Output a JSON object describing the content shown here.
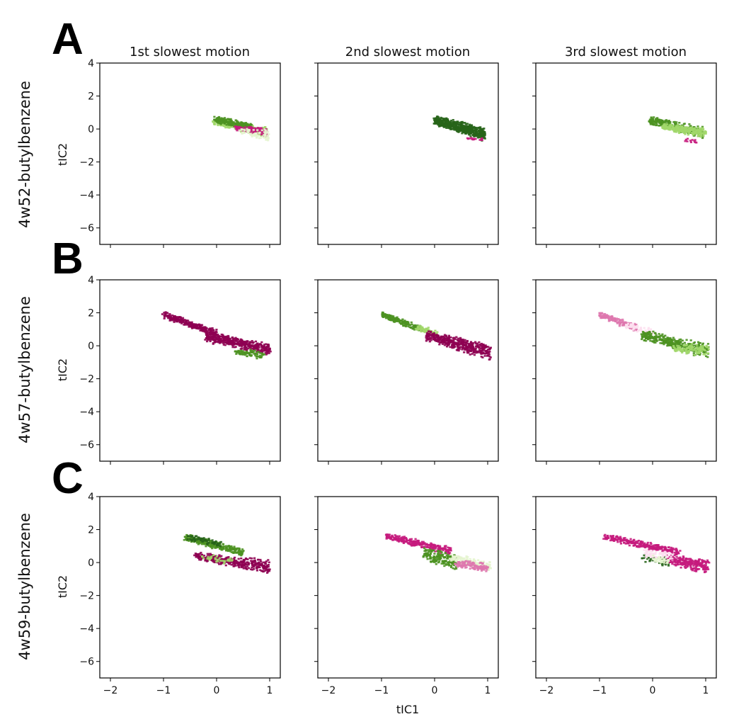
{
  "figure": {
    "column_titles": [
      "1st slowest motion",
      "2nd slowest motion",
      "3rd slowest motion"
    ],
    "row_labels": [
      "4w52-butylbenzene",
      "4w57-butylbenzene",
      "4w59-butylbenzene"
    ],
    "panel_letters": [
      "A",
      "B",
      "C"
    ],
    "xlabel": "tIC1",
    "ylabel": "tIC2",
    "colors": {
      "dark_green": "#276419",
      "green": "#4d9221",
      "light_green": "#a1d76a",
      "pale_green": "#e6f5d0",
      "pale_pink": "#fde0ef",
      "pink": "#de77ae",
      "magenta": "#c51b7d",
      "dark_magenta": "#8e0152"
    }
  },
  "chart_data": {
    "type": "scatter",
    "layout": "3x3 grid of scatter panels sharing axes",
    "xlim": [
      -2.2,
      1.2
    ],
    "ylim": [
      -7,
      4
    ],
    "xticks": [
      -2,
      -1,
      0,
      1
    ],
    "yticks": [
      -6,
      -4,
      -2,
      0,
      2,
      4
    ],
    "x_tick_labels": [
      "−2",
      "−1",
      "0",
      "1"
    ],
    "y_tick_labels": [
      "−6",
      "−4",
      "−2",
      "0",
      "2",
      "4"
    ],
    "grid": false,
    "legend": "none",
    "panels": [
      {
        "row": 0,
        "col": 0,
        "clusters": [
          {
            "x": [
              -0.05,
              0.95
            ],
            "y_top": [
              0.7,
              0.15
            ],
            "y_bot": [
              0.25,
              -0.6
            ],
            "color": "light_green",
            "n": 300
          },
          {
            "x": [
              -0.05,
              0.65
            ],
            "y_top": [
              0.85,
              0.35
            ],
            "y_bot": [
              0.35,
              -0.05
            ],
            "color": "green",
            "n": 220
          },
          {
            "x": [
              0.35,
              0.95
            ],
            "y_top": [
              0.2,
              0.1
            ],
            "y_bot": [
              -0.1,
              -0.5
            ],
            "color": "magenta",
            "n": 110
          },
          {
            "x": [
              0.45,
              1.0
            ],
            "y_top": [
              0.05,
              0.0
            ],
            "y_bot": [
              -0.4,
              -0.9
            ],
            "color": "pale_green",
            "n": 70
          }
        ]
      },
      {
        "row": 0,
        "col": 1,
        "clusters": [
          {
            "x": [
              0.0,
              0.95
            ],
            "y_top": [
              0.85,
              0.15
            ],
            "y_bot": [
              0.2,
              -0.8
            ],
            "color": "dark_green",
            "n": 520
          },
          {
            "x": [
              0.6,
              0.9
            ],
            "y_top": [
              -0.45,
              -0.5
            ],
            "y_bot": [
              -0.65,
              -0.8
            ],
            "color": "magenta",
            "n": 15
          }
        ]
      },
      {
        "row": 0,
        "col": 2,
        "clusters": [
          {
            "x": [
              -0.05,
              0.95
            ],
            "y_top": [
              0.8,
              0.15
            ],
            "y_bot": [
              0.25,
              -0.6
            ],
            "color": "green",
            "n": 300
          },
          {
            "x": [
              0.2,
              1.0
            ],
            "y_top": [
              0.35,
              0.1
            ],
            "y_bot": [
              -0.1,
              -0.55
            ],
            "color": "light_green",
            "n": 220
          },
          {
            "x": [
              0.6,
              0.85
            ],
            "y_top": [
              -0.55,
              -0.65
            ],
            "y_bot": [
              -0.8,
              -0.95
            ],
            "color": "magenta",
            "n": 12
          }
        ]
      },
      {
        "row": 1,
        "col": 0,
        "clusters": [
          {
            "x": [
              -1.0,
              0.0
            ],
            "y_top": [
              2.1,
              1.0
            ],
            "y_bot": [
              1.65,
              0.5
            ],
            "color": "dark_magenta",
            "n": 260
          },
          {
            "x": [
              -0.2,
              1.0
            ],
            "y_top": [
              0.95,
              0.15
            ],
            "y_bot": [
              0.2,
              -0.6
            ],
            "color": "dark_magenta",
            "n": 420
          },
          {
            "x": [
              0.35,
              0.9
            ],
            "y_top": [
              -0.2,
              -0.15
            ],
            "y_bot": [
              -0.55,
              -0.9
            ],
            "color": "green",
            "n": 80
          }
        ]
      },
      {
        "row": 1,
        "col": 1,
        "clusters": [
          {
            "x": [
              -1.0,
              -0.25
            ],
            "y_top": [
              2.1,
              1.2
            ],
            "y_bot": [
              1.7,
              0.75
            ],
            "color": "green",
            "n": 190
          },
          {
            "x": [
              -0.35,
              0.05
            ],
            "y_top": [
              1.3,
              1.0
            ],
            "y_bot": [
              0.8,
              0.55
            ],
            "color": "light_green",
            "n": 60
          },
          {
            "x": [
              -0.15,
              1.05
            ],
            "y_top": [
              0.95,
              0.15
            ],
            "y_bot": [
              0.25,
              -0.9
            ],
            "color": "dark_magenta",
            "n": 430
          }
        ]
      },
      {
        "row": 1,
        "col": 2,
        "clusters": [
          {
            "x": [
              -1.0,
              -0.3
            ],
            "y_top": [
              2.1,
              1.3
            ],
            "y_bot": [
              1.7,
              0.8
            ],
            "color": "pink",
            "n": 150
          },
          {
            "x": [
              -0.5,
              0.0
            ],
            "y_top": [
              1.45,
              1.1
            ],
            "y_bot": [
              1.0,
              0.55
            ],
            "color": "pale_pink",
            "n": 60
          },
          {
            "x": [
              -0.2,
              1.05
            ],
            "y_top": [
              1.0,
              0.2
            ],
            "y_bot": [
              0.3,
              -0.85
            ],
            "color": "green",
            "n": 380
          },
          {
            "x": [
              0.4,
              1.05
            ],
            "y_top": [
              0.1,
              0.15
            ],
            "y_bot": [
              -0.4,
              -0.7
            ],
            "color": "light_green",
            "n": 110
          }
        ]
      },
      {
        "row": 2,
        "col": 0,
        "clusters": [
          {
            "x": [
              -0.6,
              0.5
            ],
            "y_top": [
              1.8,
              0.9
            ],
            "y_bot": [
              1.3,
              0.35
            ],
            "color": "green",
            "n": 260
          },
          {
            "x": [
              -0.55,
              0.1
            ],
            "y_top": [
              1.75,
              1.3
            ],
            "y_bot": [
              1.35,
              0.9
            ],
            "color": "dark_green",
            "n": 70
          },
          {
            "x": [
              -0.4,
              1.0
            ],
            "y_top": [
              0.65,
              0.2
            ],
            "y_bot": [
              0.2,
              -0.8
            ],
            "color": "dark_magenta",
            "n": 380
          },
          {
            "x": [
              -0.3,
              0.3
            ],
            "y_top": [
              0.55,
              0.4
            ],
            "y_bot": [
              0.1,
              -0.2
            ],
            "color": "light_green",
            "n": 35
          }
        ]
      },
      {
        "row": 2,
        "col": 1,
        "clusters": [
          {
            "x": [
              -0.9,
              0.3
            ],
            "y_top": [
              1.8,
              1.0
            ],
            "y_bot": [
              1.4,
              0.4
            ],
            "color": "magenta",
            "n": 250
          },
          {
            "x": [
              -0.2,
              0.4
            ],
            "y_top": [
              0.95,
              0.6
            ],
            "y_bot": [
              0.1,
              -0.5
            ],
            "color": "green",
            "n": 180
          },
          {
            "x": [
              0.3,
              1.05
            ],
            "y_top": [
              0.65,
              0.1
            ],
            "y_bot": [
              0.0,
              -0.6
            ],
            "color": "pale_green",
            "n": 150
          },
          {
            "x": [
              0.4,
              1.0
            ],
            "y_top": [
              0.2,
              0.0
            ],
            "y_bot": [
              -0.3,
              -0.65
            ],
            "color": "pink",
            "n": 110
          }
        ]
      },
      {
        "row": 2,
        "col": 2,
        "clusters": [
          {
            "x": [
              -0.9,
              0.5
            ],
            "y_top": [
              1.8,
              0.9
            ],
            "y_bot": [
              1.3,
              0.4
            ],
            "color": "magenta",
            "n": 270
          },
          {
            "x": [
              0.25,
              1.05
            ],
            "y_top": [
              0.55,
              0.2
            ],
            "y_bot": [
              -0.1,
              -0.75
            ],
            "color": "magenta",
            "n": 260
          },
          {
            "x": [
              -0.2,
              0.3
            ],
            "y_top": [
              0.6,
              0.4
            ],
            "y_bot": [
              0.0,
              -0.3
            ],
            "color": "dark_green",
            "n": 50
          },
          {
            "x": [
              -0.15,
              0.35
            ],
            "y_top": [
              0.85,
              0.7
            ],
            "y_bot": [
              0.3,
              0.0
            ],
            "color": "pale_pink",
            "n": 70
          },
          {
            "x": [
              0.0,
              0.3
            ],
            "y_top": [
              0.45,
              0.3
            ],
            "y_bot": [
              0.0,
              -0.2
            ],
            "color": "pale_green",
            "n": 30
          }
        ]
      }
    ]
  }
}
